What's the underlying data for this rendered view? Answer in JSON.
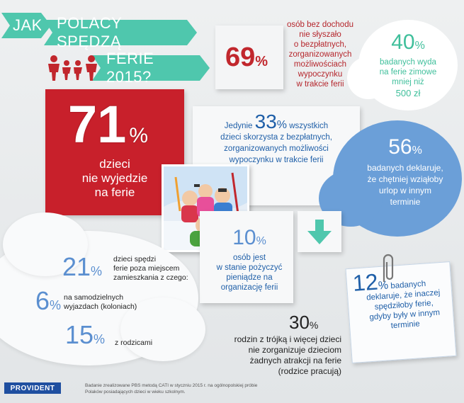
{
  "title": {
    "jak": "JAK",
    "polacy": "POLACY SPĘDZĄ",
    "ferie": "FERIE 2015?"
  },
  "stat69": {
    "value": "69",
    "unit": "%",
    "lines": [
      "osób bez dochodu",
      "nie słyszało",
      "o bezpłatnych,",
      "zorganizowanych",
      "możliwościach",
      "wypoczynku",
      "w trakcie ferii"
    ]
  },
  "stat40": {
    "value": "40",
    "unit": "%",
    "lines": [
      "badanych wyda",
      "na ferie zimowe",
      "mniej niż",
      "500 zł"
    ]
  },
  "stat71": {
    "value": "71",
    "unit": "%",
    "lines": [
      "dzieci",
      "nie wyjedzie",
      "na ferie"
    ]
  },
  "stat33": {
    "prefix": "Jedynie",
    "value": "33",
    "unit": "%",
    "suffix": "wszystkich",
    "lines": [
      "dzieci skorzysta z bezpłatnych,",
      "zorganizowanych możliwości",
      "wypoczynku w trakcie ferii"
    ]
  },
  "stat56": {
    "value": "56",
    "unit": "%",
    "lines": [
      "badanych deklaruje,",
      "że chętniej wziąłoby",
      "urlop w innym",
      "terminie"
    ]
  },
  "stat10": {
    "value": "10",
    "unit": "%",
    "lines": [
      "osób jest",
      "w stanie pożyczyć",
      "pieniądze na",
      "organizację ferii"
    ]
  },
  "stat21": {
    "value": "21",
    "unit": "%",
    "lines": [
      "dzieci spędzi",
      "ferie poza miejscem",
      "zamieszkania z czego:"
    ]
  },
  "stat6": {
    "value": "6",
    "unit": "%",
    "lines": [
      "na samodzielnych",
      "wyjazdach (koloniach)"
    ]
  },
  "stat15": {
    "value": "15",
    "unit": "%",
    "lines": [
      "z rodzicami"
    ]
  },
  "stat12": {
    "value": "12",
    "unit": "%",
    "first": "badanych",
    "lines": [
      "deklaruje, że inaczej",
      "spędziłoby ferie,",
      "gdyby były w innym",
      "terminie"
    ]
  },
  "stat30": {
    "value": "30",
    "unit": "%",
    "lines": [
      "rodzin z trójką i więcej dzieci",
      "nie zorganizuje dzieciom",
      "żadnych atrakcji na ferie",
      "(rodzice pracują)"
    ]
  },
  "footer": {
    "logo": "PROVIDENT",
    "note1": "Badanie zrealizowane PBS metodą CATI w styczniu 2015 r. na ogólnopolskiej próbie",
    "note2": "Polaków posiadających dzieci w wieku szkolnym."
  },
  "colors": {
    "accent_green": "#4fc7ad",
    "red": "#c1272d",
    "blue": "#1f5fa8",
    "light_blue": "#6b9fd8"
  }
}
